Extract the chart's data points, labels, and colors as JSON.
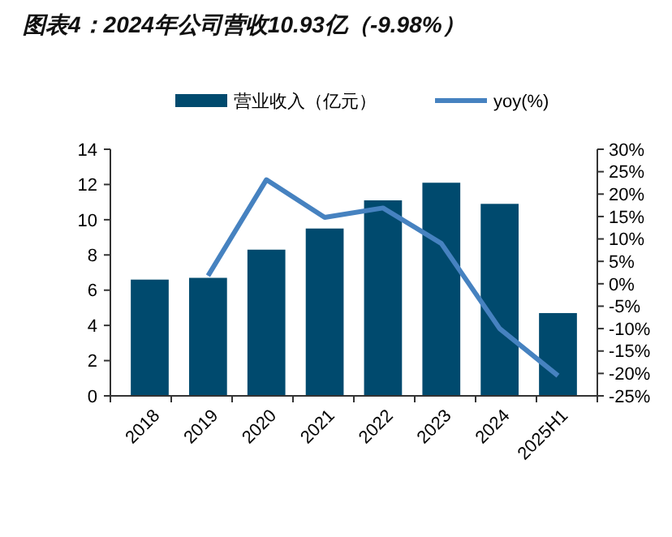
{
  "chart_data": {
    "type": "bar",
    "title": "图表4：2024年公司营收10.93亿（-9.98%）",
    "categories": [
      "2018",
      "2019",
      "2020",
      "2021",
      "2022",
      "2023",
      "2024",
      "2025H1"
    ],
    "series": [
      {
        "name": "营业收入（亿元）",
        "color": "#004a6e",
        "values": [
          6.6,
          6.7,
          8.3,
          9.5,
          11.1,
          12.1,
          10.9,
          4.7
        ]
      },
      {
        "name": "yoy(%)",
        "type": "line",
        "axis": "y2",
        "color": "#4682c0",
        "values": [
          null,
          1.8,
          23.2,
          14.8,
          16.9,
          9,
          -10,
          -20.5
        ]
      }
    ],
    "ylim": [
      0,
      14
    ],
    "yticks": [
      0,
      2,
      4,
      6,
      8,
      10,
      12,
      14
    ],
    "y2lim": [
      -25,
      30
    ],
    "y2ticks": [
      {
        "value": -25,
        "label": "-25%"
      },
      {
        "value": -20,
        "label": "-20%"
      },
      {
        "value": -15,
        "label": "-15%"
      },
      {
        "value": -10,
        "label": "-10%"
      },
      {
        "value": -5,
        "label": "-5%"
      },
      {
        "value": 0,
        "label": "0%"
      },
      {
        "value": 5,
        "label": "5%"
      },
      {
        "value": 10,
        "label": "10%"
      },
      {
        "value": 15,
        "label": "15%"
      },
      {
        "value": 20,
        "label": "20%"
      },
      {
        "value": 25,
        "label": "25%"
      },
      {
        "value": 30,
        "label": "30%"
      }
    ],
    "legend": "top",
    "grid": false,
    "marker": "none",
    "line_style": "solid"
  }
}
